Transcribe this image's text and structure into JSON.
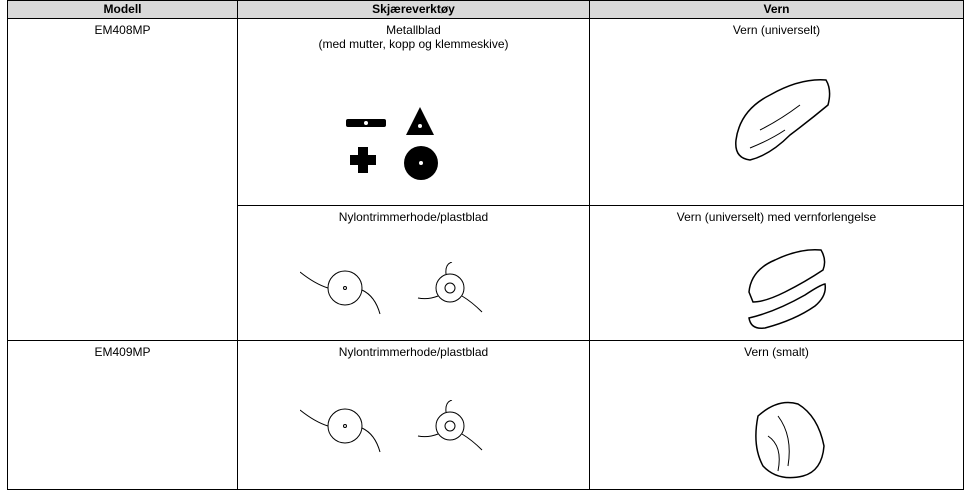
{
  "table": {
    "header": [
      "Modell",
      "Skjæreverktøy",
      "Vern"
    ],
    "rows": [
      {
        "model": "EM408MP",
        "tool": [
          "Metallblad",
          "(med mutter, kopp og klemmeskive)"
        ],
        "guard": "Vern (universelt)"
      },
      {
        "tool": [
          "Nylontrimmerhode/plastblad"
        ],
        "guard": "Vern (universelt) med vernforlengelse"
      },
      {
        "model": "EM409MP",
        "tool": [
          "Nylontrimmerhode/plastblad"
        ],
        "guard": "Vern (smalt)"
      }
    ]
  }
}
